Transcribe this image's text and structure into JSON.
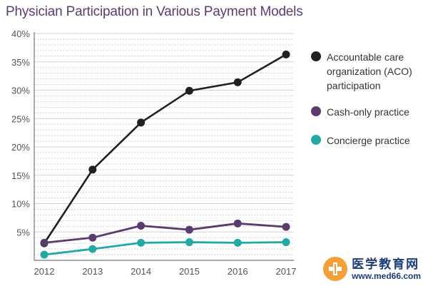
{
  "colors": {
    "title": "#5a3d72",
    "axis_text": "#555555",
    "grid_minor": "#c8c8c8",
    "grid_major": "#d2d2d2",
    "axis": "#777777"
  },
  "chart_data": {
    "type": "line",
    "title": "Physician Participation in Various Payment Models",
    "xlabel": "",
    "ylabel": "",
    "x": [
      "2012",
      "2013",
      "2014",
      "2015",
      "2016",
      "2017"
    ],
    "ylim": [
      0,
      40
    ],
    "yticks": [
      5,
      10,
      15,
      20,
      25,
      30,
      35,
      40
    ],
    "ytick_labels": [
      "5%",
      "10%",
      "15%",
      "20%",
      "25%",
      "30%",
      "35%",
      "40%"
    ],
    "grid": true,
    "legend_position": "right",
    "series": [
      {
        "name": "Accountable care organization (ACO) participation",
        "color": "#231f20",
        "values": [
          3.0,
          16.0,
          24.3,
          29.9,
          31.4,
          36.3
        ]
      },
      {
        "name": "Cash-only practice",
        "color": "#5b3a6e",
        "values": [
          3.1,
          4.0,
          6.1,
          5.4,
          6.5,
          5.9
        ]
      },
      {
        "name": "Concierge practice",
        "color": "#23a9a4",
        "values": [
          1.0,
          2.0,
          3.1,
          3.2,
          3.1,
          3.2
        ]
      }
    ]
  },
  "watermark": {
    "chinese": "医学教育网",
    "url": "www.med66.com"
  }
}
